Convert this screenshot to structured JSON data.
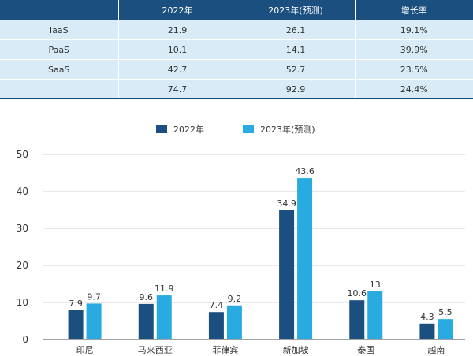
{
  "table": {
    "headers": [
      "",
      "2022年",
      "2023年(预测)",
      "增长率"
    ],
    "rows": [
      [
        "IaaS",
        "21.9",
        "26.1",
        "19.1%"
      ],
      [
        "PaaS",
        "10.1",
        "14.1",
        "39.9%"
      ],
      [
        "SaaS",
        "42.7",
        "52.7",
        "23.5%"
      ],
      [
        "",
        "74.7",
        "92.9",
        "24.4%"
      ]
    ]
  },
  "chart_data": {
    "type": "bar",
    "categories": [
      "印尼",
      "马来西亚",
      "菲律宾",
      "新加坡",
      "泰国",
      "越南"
    ],
    "series": [
      {
        "name": "2022年",
        "values": [
          7.9,
          9.6,
          7.4,
          34.9,
          10.6,
          4.3
        ],
        "color": "#1b4f7f"
      },
      {
        "name": "2023年(预测)",
        "values": [
          9.7,
          11.9,
          9.2,
          43.6,
          13,
          5.5
        ],
        "color": "#29abe2"
      }
    ],
    "yticks": [
      0,
      10,
      20,
      30,
      40,
      50
    ],
    "ylim": [
      0,
      50
    ],
    "grid": true,
    "legend": "top-center"
  }
}
